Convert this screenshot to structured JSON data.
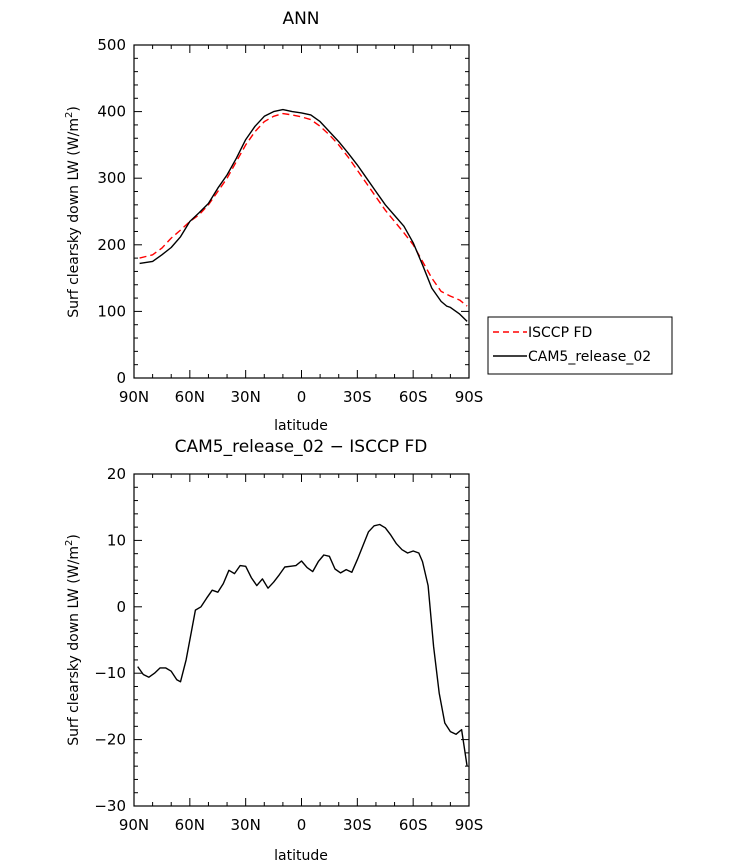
{
  "chart_data": [
    {
      "type": "line",
      "title": "ANN",
      "xlabel": "latitude",
      "ylabel": "Surf clearsky down LW (W/m²)",
      "xticks": [
        "90N",
        "60N",
        "30N",
        "0",
        "30S",
        "60S",
        "90S"
      ],
      "yticks": [
        "0",
        "100",
        "200",
        "300",
        "400",
        "500"
      ],
      "xlim": [
        90,
        -90
      ],
      "ylim": [
        0,
        500
      ],
      "legend_position": "right-outside",
      "series": [
        {
          "name": "ISCCP FD",
          "color": "#ff0000",
          "style": "dashed",
          "x": [
            87,
            80,
            75,
            70,
            65,
            60,
            55,
            50,
            45,
            40,
            35,
            30,
            25,
            20,
            15,
            10,
            5,
            0,
            -5,
            -10,
            -15,
            -20,
            -25,
            -30,
            -35,
            -40,
            -45,
            -50,
            -55,
            -60,
            -65,
            -70,
            -75,
            -80,
            -85,
            -89
          ],
          "y": [
            180,
            185,
            195,
            210,
            222,
            235,
            245,
            260,
            280,
            300,
            325,
            350,
            370,
            385,
            393,
            397,
            395,
            392,
            388,
            378,
            365,
            350,
            332,
            312,
            292,
            272,
            252,
            235,
            218,
            200,
            175,
            150,
            130,
            123,
            117,
            108
          ]
        },
        {
          "name": "CAM5_release_02",
          "color": "#000000",
          "style": "solid",
          "x": [
            87,
            80,
            75,
            70,
            65,
            60,
            55,
            50,
            45,
            40,
            35,
            30,
            25,
            20,
            15,
            10,
            5,
            0,
            -5,
            -10,
            -15,
            -20,
            -25,
            -30,
            -35,
            -40,
            -45,
            -50,
            -55,
            -60,
            -65,
            -70,
            -75,
            -78,
            -80,
            -85,
            -89
          ],
          "y": [
            172,
            175,
            185,
            196,
            212,
            235,
            248,
            262,
            285,
            305,
            330,
            358,
            378,
            393,
            400,
            403,
            400,
            398,
            395,
            385,
            370,
            355,
            338,
            320,
            300,
            280,
            260,
            244,
            228,
            203,
            170,
            135,
            115,
            108,
            106,
            96,
            85
          ]
        }
      ]
    },
    {
      "type": "line",
      "title": "CAM5_release_02 − ISCCP FD",
      "xlabel": "latitude",
      "ylabel": "Surf clearsky down LW (W/m²)",
      "xticks": [
        "90N",
        "60N",
        "30N",
        "0",
        "30S",
        "60S",
        "90S"
      ],
      "yticks": [
        "−30",
        "−20",
        "−10",
        "0",
        "10",
        "20"
      ],
      "xlim": [
        90,
        -90
      ],
      "ylim": [
        -30,
        20
      ],
      "series": [
        {
          "color": "#000000",
          "style": "solid",
          "x": [
            88,
            85,
            82,
            79,
            76,
            73,
            70,
            67,
            65,
            62,
            59,
            57,
            54,
            51,
            48,
            45,
            42,
            39,
            36,
            33,
            30,
            27,
            24,
            21,
            18,
            15,
            12,
            9,
            6,
            3,
            0,
            -3,
            -6,
            -9,
            -12,
            -15,
            -18,
            -21,
            -24,
            -27,
            -30,
            -33,
            -36,
            -39,
            -42,
            -45,
            -48,
            -51,
            -54,
            -57,
            -60,
            -63,
            -65,
            -68,
            -71,
            -74,
            -77,
            -80,
            -83,
            -86,
            -89
          ],
          "y": [
            -9,
            -10.2,
            -10.6,
            -10,
            -9.2,
            -9.2,
            -9.7,
            -11,
            -11.3,
            -8,
            -3.5,
            -0.5,
            0,
            1.3,
            2.5,
            2.2,
            3.5,
            5.5,
            5,
            6.2,
            6.1,
            4.4,
            3.2,
            4.2,
            2.8,
            3.7,
            4.8,
            6,
            6.1,
            6.2,
            6.9,
            5.9,
            5.3,
            6.8,
            7.8,
            7.6,
            5.7,
            5.1,
            5.6,
            5.2,
            7.1,
            9.2,
            11.3,
            12.2,
            12.4,
            11.9,
            10.8,
            9.5,
            8.6,
            8.1,
            8.4,
            8.1,
            6.8,
            3.2,
            -6,
            -13,
            -17.5,
            -18.8,
            -19.2,
            -18.5,
            -24
          ]
        }
      ]
    }
  ]
}
